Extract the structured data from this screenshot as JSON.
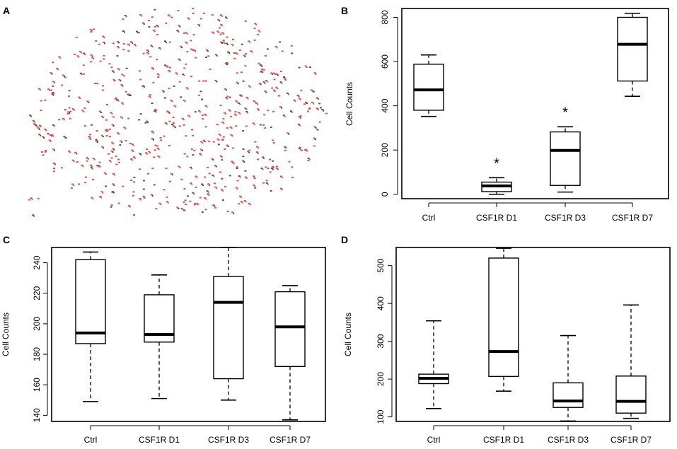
{
  "figure": {
    "panel_a_label": "A",
    "dot_color": "#d9534f"
  },
  "chart_data": [
    {
      "panel": "B",
      "type": "box",
      "ylabel": "Cell Counts",
      "ylim": [
        -20,
        840
      ],
      "yticks": [
        0,
        200,
        400,
        600,
        800
      ],
      "categories": [
        "Ctrl",
        "CSF1R D1",
        "CSF1R D3",
        "CSF1R D7"
      ],
      "boxes": [
        {
          "whisker_low": 352,
          "q1": 380,
          "median": 472,
          "q3": 588,
          "whisker_high": 630,
          "annotation": ""
        },
        {
          "whisker_low": 0,
          "q1": 12,
          "median": 38,
          "q3": 55,
          "whisker_high": 75,
          "annotation": "*"
        },
        {
          "whisker_low": 10,
          "q1": 40,
          "median": 198,
          "q3": 282,
          "whisker_high": 305,
          "annotation": "*"
        },
        {
          "whisker_low": 443,
          "q1": 512,
          "median": 678,
          "q3": 800,
          "whisker_high": 818,
          "annotation": ""
        }
      ]
    },
    {
      "panel": "C",
      "type": "box",
      "ylabel": "Cell Counts",
      "ylim": [
        136,
        250
      ],
      "yticks": [
        140,
        160,
        180,
        200,
        220,
        240
      ],
      "categories": [
        "Ctrl",
        "CSF1R D1",
        "CSF1R D3",
        "CSF1R D7"
      ],
      "boxes": [
        {
          "whisker_low": 149,
          "q1": 187,
          "median": 194,
          "q3": 242,
          "whisker_high": 247,
          "annotation": ""
        },
        {
          "whisker_low": 151,
          "q1": 188,
          "median": 193,
          "q3": 219,
          "whisker_high": 232,
          "annotation": ""
        },
        {
          "whisker_low": 150,
          "q1": 164,
          "median": 214,
          "q3": 231,
          "whisker_high": 250,
          "annotation": ""
        },
        {
          "whisker_low": 137,
          "q1": 172,
          "median": 198,
          "q3": 221,
          "whisker_high": 225,
          "annotation": ""
        }
      ]
    },
    {
      "panel": "D",
      "type": "box",
      "ylabel": "Cell Counts",
      "ylim": [
        88,
        548
      ],
      "yticks": [
        100,
        200,
        300,
        400,
        500
      ],
      "categories": [
        "Ctrl",
        "CSF1R D1",
        "CSF1R D3",
        "CSF1R D7"
      ],
      "boxes": [
        {
          "whisker_low": 122,
          "q1": 188,
          "median": 202,
          "q3": 213,
          "whisker_high": 354,
          "annotation": ""
        },
        {
          "whisker_low": 168,
          "q1": 207,
          "median": 273,
          "q3": 520,
          "whisker_high": 546,
          "annotation": ""
        },
        {
          "whisker_low": 89,
          "q1": 125,
          "median": 142,
          "q3": 190,
          "whisker_high": 315,
          "annotation": ""
        },
        {
          "whisker_low": 96,
          "q1": 110,
          "median": 141,
          "q3": 208,
          "whisker_high": 396,
          "annotation": ""
        }
      ]
    }
  ]
}
